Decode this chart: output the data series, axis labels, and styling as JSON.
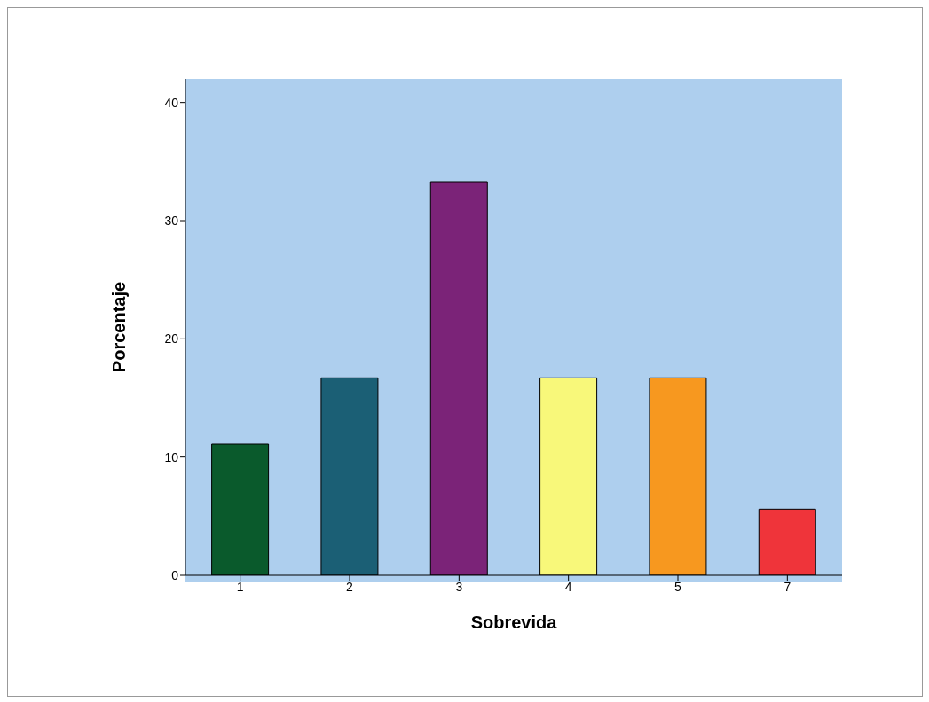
{
  "chart_data": {
    "type": "bar",
    "xlabel": "Sobrevida",
    "ylabel": "Porcentaje",
    "categories": [
      "1",
      "2",
      "3",
      "4",
      "5",
      "7"
    ],
    "values": [
      11.1,
      16.7,
      33.3,
      16.7,
      16.7,
      5.6
    ],
    "colors": [
      "#0a5a2c",
      "#1b5f75",
      "#7b2378",
      "#f8f87a",
      "#f7981f",
      "#ef343a"
    ],
    "ylim": [
      0,
      42
    ],
    "yticks": [
      0,
      10,
      20,
      30,
      40
    ],
    "grid": false,
    "legend": false
  }
}
